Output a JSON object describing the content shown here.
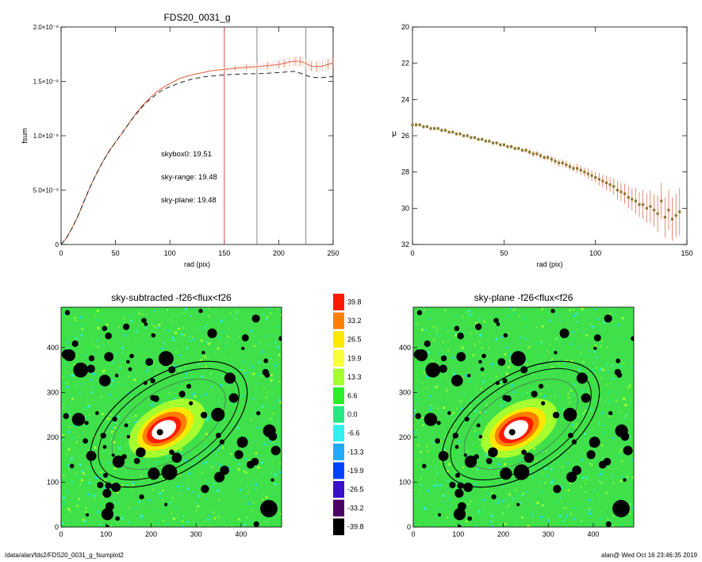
{
  "charts": [
    {
      "type": "line",
      "title": "FDS20_0031_g",
      "xlabel": "rad (pix)",
      "ylabel": "fsum",
      "xlim": [
        0,
        250
      ],
      "ylim": [
        0,
        2e-08
      ],
      "xticks": [
        0,
        50,
        100,
        150,
        200,
        250
      ],
      "yticks": [
        0,
        5e-09,
        1e-08,
        1.5e-08,
        2e-08
      ],
      "ytick_labels": [
        "0",
        "5.0×10⁻⁹",
        "1.0×10⁻⁸",
        "1.5×10⁻⁸",
        "2.0×10⁻⁸"
      ],
      "vlines": [
        {
          "x": 150,
          "color": "#cc3333"
        },
        {
          "x": 180,
          "color": "#777777"
        },
        {
          "x": 225,
          "color": "#777777"
        }
      ],
      "annotations": [
        {
          "text": "skybox0: 19.51",
          "color": "#000000"
        },
        {
          "text": "sky-range: 19.48",
          "color": "#e8221b"
        },
        {
          "text": "sky-plane: 19.48",
          "color": "#22cc22"
        }
      ],
      "series": [
        {
          "color": "#e05a3a",
          "errorbars": true,
          "x": [
            0,
            5,
            10,
            15,
            20,
            25,
            30,
            35,
            40,
            45,
            50,
            55,
            60,
            65,
            70,
            75,
            80,
            85,
            90,
            95,
            100,
            110,
            120,
            130,
            140,
            150,
            160,
            170,
            180,
            190,
            200,
            205,
            210,
            215,
            220,
            225,
            230,
            235,
            240,
            245,
            250
          ],
          "y": [
            0,
            6e-10,
            1.5e-09,
            2.5e-09,
            3.7e-09,
            4.9e-09,
            6e-09,
            7e-09,
            7.9e-09,
            8.7e-09,
            9.4e-09,
            1.01e-08,
            1.08e-08,
            1.15e-08,
            1.22e-08,
            1.28e-08,
            1.33e-08,
            1.38e-08,
            1.42e-08,
            1.45e-08,
            1.48e-08,
            1.53e-08,
            1.56e-08,
            1.58e-08,
            1.6e-08,
            1.61e-08,
            1.62e-08,
            1.63e-08,
            1.635e-08,
            1.645e-08,
            1.655e-08,
            1.665e-08,
            1.68e-08,
            1.685e-08,
            1.685e-08,
            1.665e-08,
            1.64e-08,
            1.635e-08,
            1.64e-08,
            1.655e-08,
            1.67e-08
          ]
        },
        {
          "color": "#222222",
          "dashed": true,
          "x": [
            0,
            5,
            10,
            15,
            20,
            25,
            30,
            35,
            40,
            45,
            50,
            55,
            60,
            65,
            70,
            75,
            80,
            85,
            90,
            95,
            100,
            110,
            120,
            130,
            140,
            150,
            160,
            170,
            180,
            190,
            200,
            205,
            210,
            215,
            220,
            225,
            230,
            235,
            240,
            245,
            250
          ],
          "y": [
            0,
            6e-10,
            1.5e-09,
            2.5e-09,
            3.7e-09,
            4.9e-09,
            6e-09,
            7e-09,
            7.9e-09,
            8.7e-09,
            9.4e-09,
            1.01e-08,
            1.08e-08,
            1.15e-08,
            1.21e-08,
            1.27e-08,
            1.32e-08,
            1.36e-08,
            1.4e-08,
            1.43e-08,
            1.45e-08,
            1.49e-08,
            1.52e-08,
            1.54e-08,
            1.55e-08,
            1.56e-08,
            1.565e-08,
            1.57e-08,
            1.57e-08,
            1.575e-08,
            1.58e-08,
            1.585e-08,
            1.59e-08,
            1.59e-08,
            1.575e-08,
            1.555e-08,
            1.54e-08,
            1.535e-08,
            1.535e-08,
            1.54e-08,
            1.545e-08
          ]
        }
      ]
    },
    {
      "type": "scatter",
      "title": "",
      "xlabel": "rad (pix)",
      "ylabel": "μ",
      "xlim": [
        0,
        150
      ],
      "ylim": [
        32,
        20
      ],
      "xticks": [
        0,
        50,
        100,
        150
      ],
      "yticks": [
        20,
        22,
        24,
        26,
        28,
        30,
        32
      ],
      "series": [
        {
          "color": "#8a7a2e",
          "errorbar_color": "#e05a3a",
          "x": [
            0,
            2,
            4,
            6,
            8,
            10,
            12,
            14,
            16,
            18,
            20,
            22,
            24,
            26,
            28,
            30,
            32,
            34,
            36,
            38,
            40,
            42,
            44,
            46,
            48,
            50,
            52,
            54,
            56,
            58,
            60,
            62,
            64,
            66,
            68,
            70,
            72,
            74,
            76,
            78,
            80,
            82,
            84,
            86,
            88,
            90,
            92,
            94,
            96,
            98,
            100,
            102,
            104,
            106,
            108,
            110,
            112,
            114,
            116,
            118,
            120,
            122,
            124,
            126,
            128,
            130,
            132,
            134,
            136,
            138,
            140,
            142,
            144,
            146
          ],
          "y": [
            25.4,
            25.4,
            25.4,
            25.5,
            25.5,
            25.6,
            25.6,
            25.6,
            25.7,
            25.7,
            25.8,
            25.8,
            25.9,
            25.9,
            26.0,
            26.0,
            26.1,
            26.1,
            26.2,
            26.2,
            26.3,
            26.3,
            26.4,
            26.4,
            26.5,
            26.5,
            26.6,
            26.6,
            26.7,
            26.7,
            26.8,
            26.8,
            26.9,
            27.0,
            27.0,
            27.1,
            27.2,
            27.2,
            27.3,
            27.4,
            27.5,
            27.5,
            27.6,
            27.7,
            27.8,
            27.8,
            27.9,
            28.0,
            28.1,
            28.2,
            28.3,
            28.4,
            28.5,
            28.6,
            28.7,
            28.8,
            29.0,
            29.1,
            29.2,
            29.4,
            29.5,
            29.6,
            29.8,
            29.8,
            30.0,
            29.9,
            30.1,
            30.3,
            29.6,
            30.5,
            30.1,
            30.6,
            30.4,
            30.2
          ],
          "err": [
            0.1,
            0.1,
            0.1,
            0.1,
            0.1,
            0.1,
            0.1,
            0.1,
            0.1,
            0.1,
            0.1,
            0.1,
            0.1,
            0.1,
            0.1,
            0.1,
            0.1,
            0.1,
            0.1,
            0.1,
            0.1,
            0.1,
            0.1,
            0.1,
            0.1,
            0.1,
            0.1,
            0.1,
            0.1,
            0.1,
            0.1,
            0.15,
            0.15,
            0.15,
            0.15,
            0.15,
            0.15,
            0.15,
            0.2,
            0.2,
            0.2,
            0.2,
            0.2,
            0.2,
            0.2,
            0.25,
            0.25,
            0.25,
            0.3,
            0.3,
            0.3,
            0.35,
            0.35,
            0.4,
            0.4,
            0.45,
            0.5,
            0.5,
            0.55,
            0.6,
            0.6,
            0.7,
            0.7,
            0.8,
            0.8,
            0.9,
            0.9,
            1.0,
            1.0,
            1.1,
            1.1,
            1.2,
            1.2,
            1.3
          ]
        }
      ]
    }
  ],
  "images": [
    {
      "title": "sky-subtracted -f26<flux<f26",
      "xticks": [
        0,
        100,
        200,
        300,
        400
      ],
      "yticks": [
        0,
        100,
        200,
        300,
        400
      ],
      "range": [
        0,
        490
      ]
    },
    {
      "title": "sky-plane -f26<flux<f26",
      "xticks": [
        0,
        100,
        200,
        300,
        400
      ],
      "yticks": [
        0,
        100,
        200,
        300,
        400
      ],
      "range": [
        0,
        490
      ]
    }
  ],
  "colorbar": {
    "labels": [
      "39.8",
      "33.2",
      "26.5",
      "19.9",
      "13.3",
      "6.6",
      "0.0",
      "-6.6",
      "-13.3",
      "-19.9",
      "-26.5",
      "-33.2",
      "-39.8"
    ],
    "colors": [
      "#ff1a00",
      "#ff7f00",
      "#ffe800",
      "#f8ff3a",
      "#a6ff2e",
      "#2bef2b",
      "#25e880",
      "#33f0f0",
      "#22aaff",
      "#0040ff",
      "#3a10c8",
      "#4a0060",
      "#000000"
    ]
  },
  "footer": {
    "left": "/data/alan/fds2/FDS20_0031_g_fsumplot2",
    "right": "alan@  Wed Oct 16 23:46:35 2019"
  }
}
